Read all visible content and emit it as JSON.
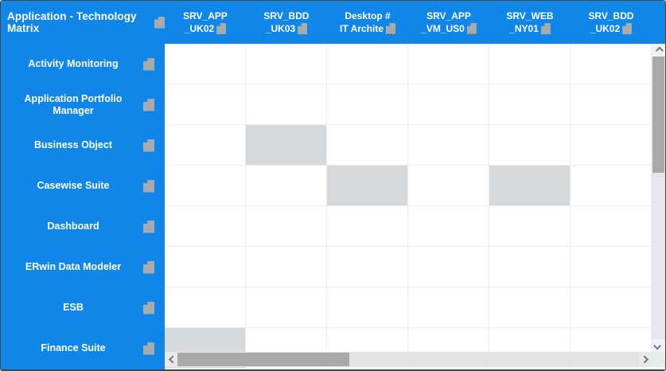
{
  "matrix": {
    "title": "Application - Technology Matrix",
    "truncation_ellipsis": "...",
    "columns": [
      {
        "label": "SRV_APP_UK02",
        "line1": "SRV_APP",
        "line2": "_UK02",
        "truncated": false
      },
      {
        "label": "SRV_BDD_UK03",
        "line1": "SRV_BDD",
        "line2": "_UK03",
        "truncated": false
      },
      {
        "label": "Desktop # IT Archite...",
        "line1": "Desktop #",
        "line2": "IT Archite",
        "truncated": true
      },
      {
        "label": "SRV_APP_VM_US0...",
        "line1": "SRV_APP",
        "line2": "_VM_US0",
        "truncated": true
      },
      {
        "label": "SRV_WEB_NY01",
        "line1": "SRV_WEB",
        "line2": "_NY01",
        "truncated": false
      },
      {
        "label": "SRV_BDD_UK02",
        "line1": "SRV_BDD",
        "line2": "_UK02",
        "truncated": false
      }
    ],
    "rows": [
      {
        "label": "Activity Monitoring"
      },
      {
        "label": "Application Portfolio Manager"
      },
      {
        "label": "Business Object"
      },
      {
        "label": "Casewise Suite"
      },
      {
        "label": "Dashboard"
      },
      {
        "label": "ERwin Data Modeler"
      },
      {
        "label": "ESB"
      },
      {
        "label": "Finance Suite"
      }
    ],
    "grid": {
      "row_count": 8,
      "col_count": 6,
      "filled_cells": [
        {
          "row": 2,
          "col": 1,
          "row_label": "Business Object",
          "col_label": "SRV_BDD_UK03"
        },
        {
          "row": 3,
          "col": 2,
          "row_label": "Casewise Suite",
          "col_label": "Desktop # IT Archite..."
        },
        {
          "row": 3,
          "col": 4,
          "row_label": "Casewise Suite",
          "col_label": "SRV_WEB_NY01"
        },
        {
          "row": 7,
          "col": 0,
          "row_label": "Finance Suite",
          "col_label": "SRV_APP_UK02"
        }
      ]
    }
  },
  "colors": {
    "accent_blue": "#1087e8",
    "header_text": "#ffffff",
    "icon_gray": "#a8abae",
    "filled_cell": "#d5d9db",
    "gridline": "#ededed",
    "scrollbar_thumb": "#a9a9a9",
    "scrollbar_track": "#e6e7e8"
  }
}
